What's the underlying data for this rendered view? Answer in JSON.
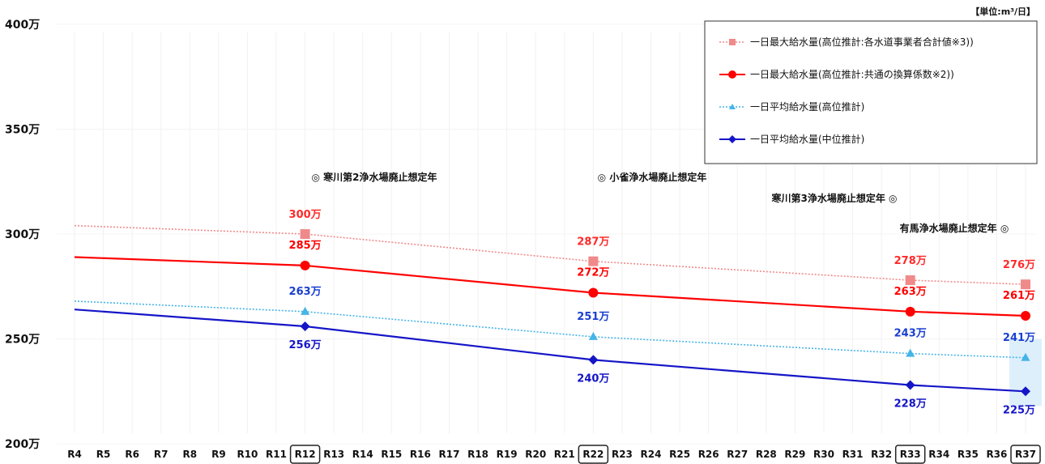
{
  "chart_data": {
    "type": "line",
    "unit_label": "【単位:m³/日】",
    "ylim": [
      200,
      400
    ],
    "yticks": [
      {
        "value": 200,
        "label": "200万"
      },
      {
        "value": 250,
        "label": "250万"
      },
      {
        "value": 300,
        "label": "300万"
      },
      {
        "value": 350,
        "label": "350万"
      },
      {
        "value": 400,
        "label": "400万"
      }
    ],
    "categories": [
      "R4",
      "R5",
      "R6",
      "R7",
      "R8",
      "R9",
      "R10",
      "R11",
      "R12",
      "R13",
      "R14",
      "R15",
      "R16",
      "R17",
      "R18",
      "R19",
      "R20",
      "R21",
      "R22",
      "R23",
      "R24",
      "R25",
      "R26",
      "R27",
      "R28",
      "R29",
      "R30",
      "R31",
      "R32",
      "R33",
      "R34",
      "R35",
      "R36",
      "R37"
    ],
    "boxed_categories": [
      "R12",
      "R22",
      "R33",
      "R37"
    ],
    "series": [
      {
        "name": "一日最大給水量(高位推計:各水道事業者合計値※3))",
        "color": "#f08a8a",
        "line_style": "dotted",
        "marker": "square",
        "points": [
          {
            "x": "R4",
            "y": 304
          },
          {
            "x": "R12",
            "y": 300,
            "label": "300万"
          },
          {
            "x": "R22",
            "y": 287,
            "label": "287万"
          },
          {
            "x": "R33",
            "y": 278,
            "label": "278万"
          },
          {
            "x": "R37",
            "y": 276,
            "label": "276万"
          }
        ]
      },
      {
        "name": "一日最大給水量(高位推計:共通の換算係数※2))",
        "color": "#ff0000",
        "line_style": "solid",
        "marker": "circle",
        "points": [
          {
            "x": "R4",
            "y": 289
          },
          {
            "x": "R12",
            "y": 285,
            "label": "285万"
          },
          {
            "x": "R22",
            "y": 272,
            "label": "272万"
          },
          {
            "x": "R33",
            "y": 263,
            "label": "263万"
          },
          {
            "x": "R37",
            "y": 261,
            "label": "261万"
          }
        ]
      },
      {
        "name": "一日平均給水量(高位推計)",
        "color": "#45b4e8",
        "line_style": "dotted",
        "marker": "triangle",
        "points": [
          {
            "x": "R4",
            "y": 268
          },
          {
            "x": "R12",
            "y": 263,
            "label": "263万"
          },
          {
            "x": "R22",
            "y": 251,
            "label": "251万"
          },
          {
            "x": "R33",
            "y": 243,
            "label": "243万"
          },
          {
            "x": "R37",
            "y": 241,
            "label": "241万"
          }
        ]
      },
      {
        "name": "一日平均給水量(中位推計)",
        "color": "#1515c8",
        "line_style": "solid",
        "marker": "diamond",
        "points": [
          {
            "x": "R4",
            "y": 264
          },
          {
            "x": "R12",
            "y": 256,
            "label": "256万"
          },
          {
            "x": "R22",
            "y": 240,
            "label": "240万"
          },
          {
            "x": "R33",
            "y": 228,
            "label": "228万"
          },
          {
            "x": "R37",
            "y": 225,
            "label": "225万"
          }
        ]
      }
    ],
    "annotations": [
      {
        "text": "◎ 寒川第2浄水場廃止想定年",
        "x": "R12"
      },
      {
        "text": "◎ 小雀浄水場廃止想定年",
        "x": "R22"
      },
      {
        "text": "寒川第3浄水場廃止想定年 ◎",
        "x": "R33"
      },
      {
        "text": "有馬浄水場廃止想定年 ◎",
        "x": "R37"
      }
    ],
    "grid": true,
    "legend": "top-right"
  }
}
